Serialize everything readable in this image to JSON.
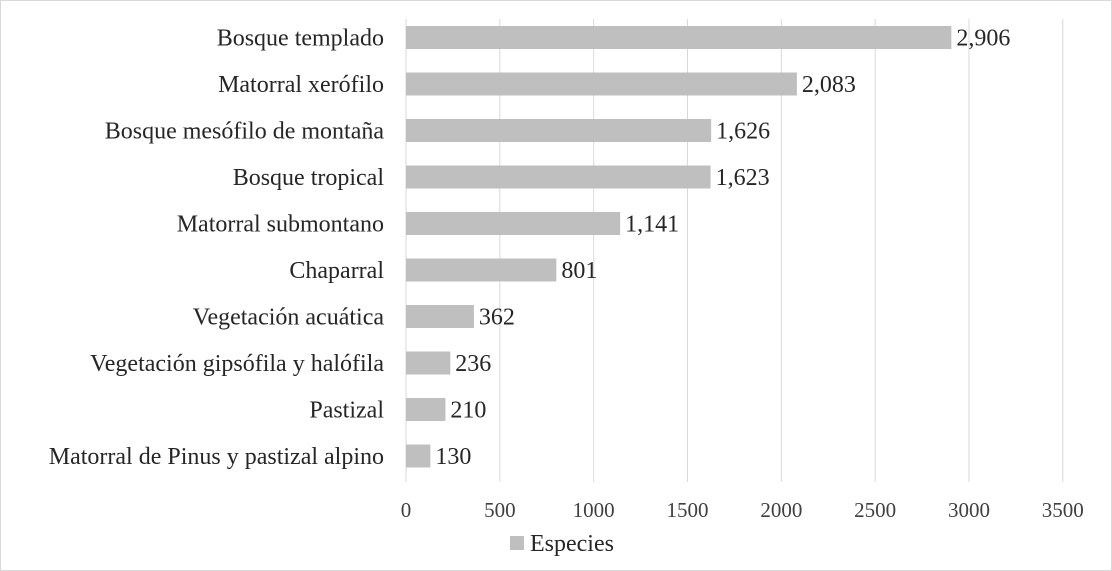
{
  "chart_data": {
    "type": "bar",
    "orientation": "horizontal",
    "categories": [
      "Bosque templado",
      "Matorral xerófilo",
      "Bosque mesófilo de montaña",
      "Bosque tropical",
      "Matorral submontano",
      "Chaparral",
      "Vegetación acuática",
      "Vegetación gipsófila y halófila",
      "Pastizal",
      "Matorral de Pinus y pastizal alpino"
    ],
    "series": [
      {
        "name": "Especies",
        "values": [
          2906,
          2083,
          1626,
          1623,
          1141,
          801,
          362,
          236,
          210,
          130
        ],
        "value_labels": [
          "2,906",
          "2,083",
          "1,626",
          "1,623",
          "1,141",
          "801",
          "362",
          "236",
          "210",
          "130"
        ],
        "color": "#bfbfbf"
      }
    ],
    "xlim": [
      0,
      3500
    ],
    "x_ticks": [
      0,
      500,
      1000,
      1500,
      2000,
      2500,
      3000,
      3500
    ],
    "x_tick_labels": [
      "0",
      "500",
      "1000",
      "1500",
      "2000",
      "2500",
      "3000",
      "3500"
    ],
    "grid": "vertical",
    "legend_position": "bottom",
    "gridline_color": "#d9d9d9",
    "title": "",
    "xlabel": "",
    "ylabel": ""
  }
}
